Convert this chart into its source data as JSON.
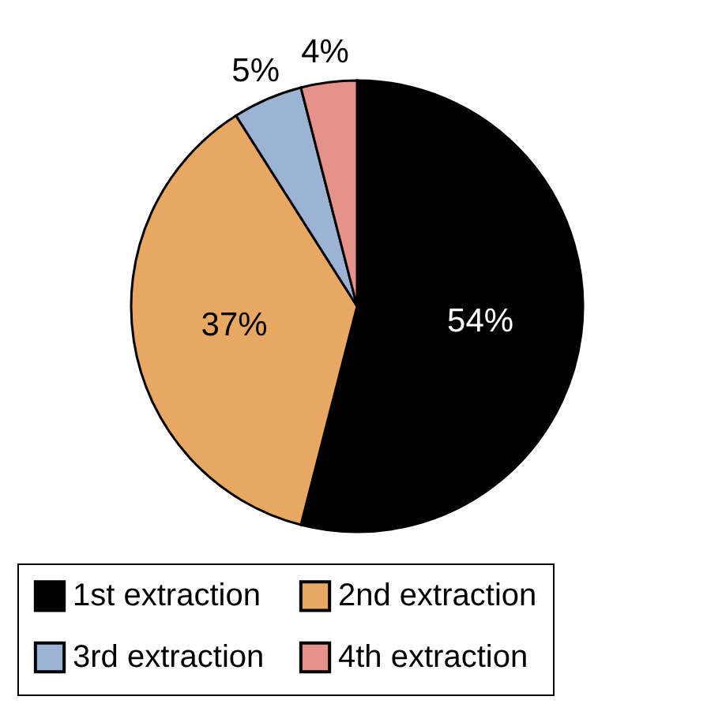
{
  "chart_data": {
    "type": "pie",
    "categories": [
      "1st extraction",
      "2nd extraction",
      "3rd extraction",
      "4th extraction"
    ],
    "values": [
      54,
      37,
      5,
      4
    ],
    "colors": [
      "#000000",
      "#e8a862",
      "#9cb3d4",
      "#e4928a"
    ],
    "value_labels": [
      "54%",
      "37%",
      "5%",
      "4%"
    ],
    "legend": "bottom"
  }
}
